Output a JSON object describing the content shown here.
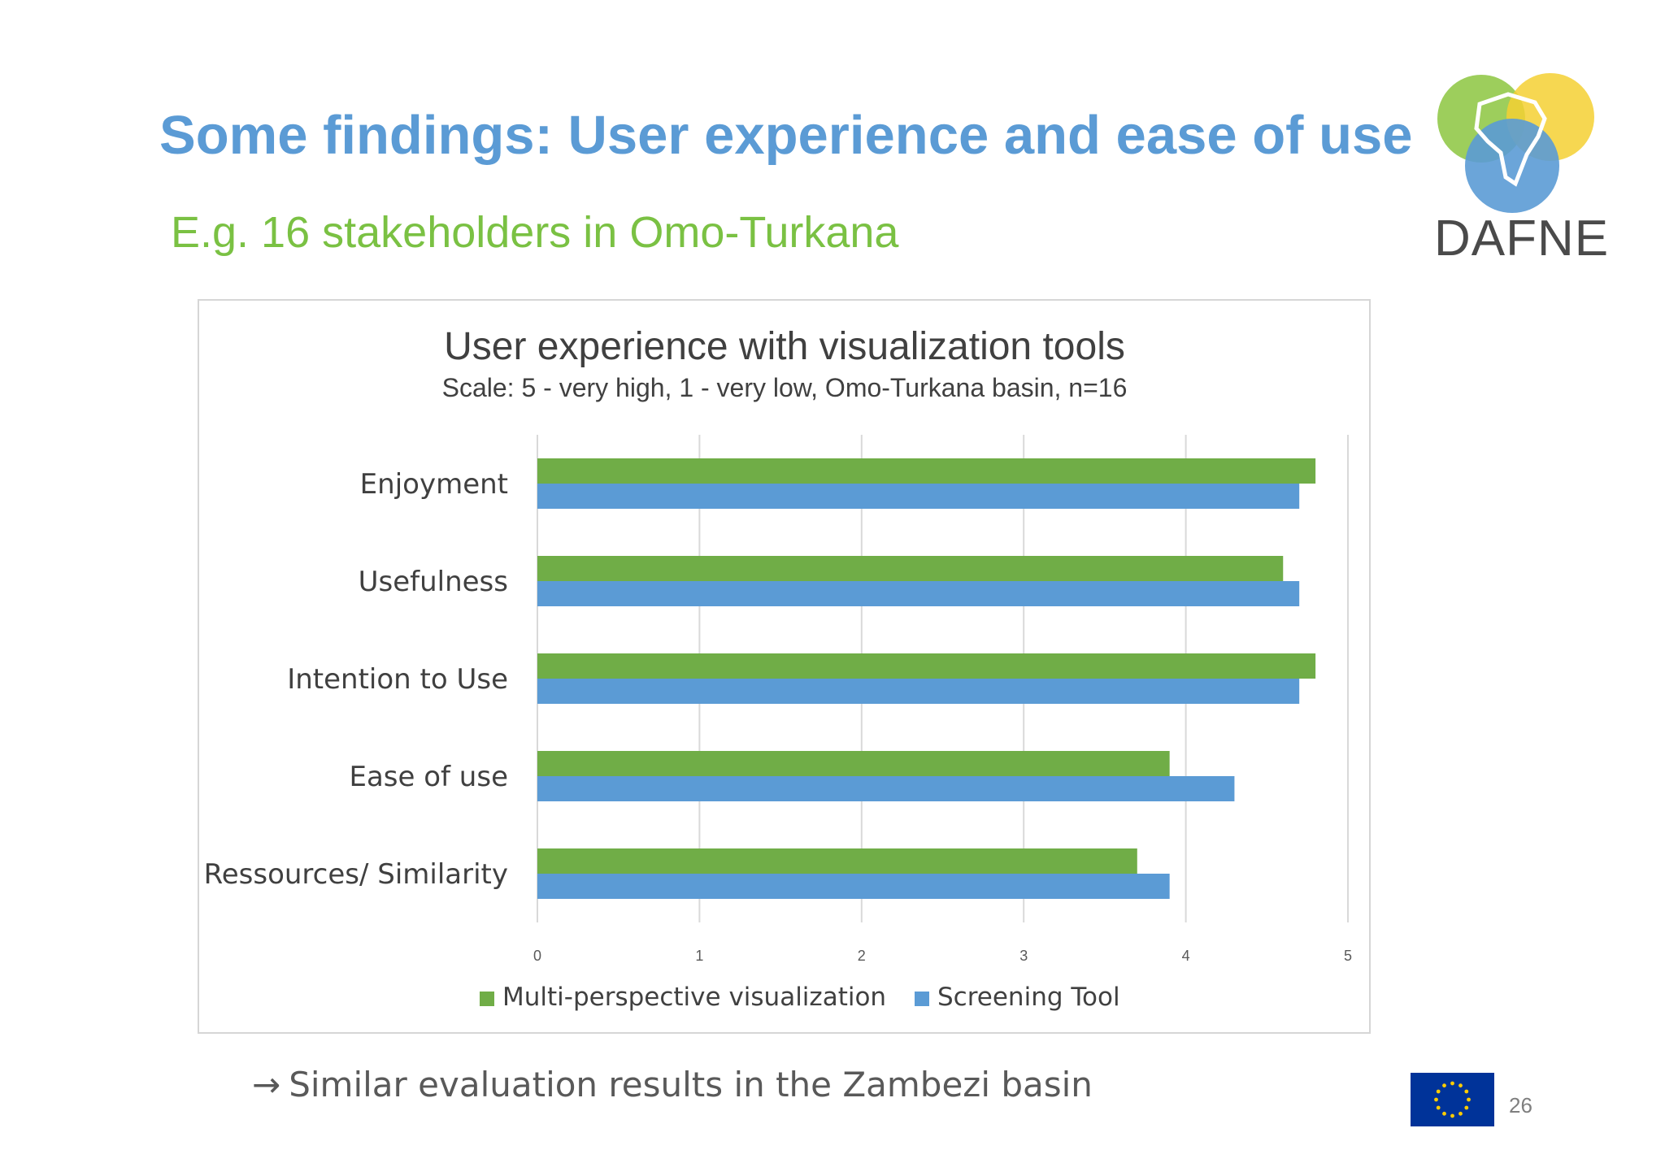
{
  "slide": {
    "title": "Some findings: User experience and ease of use",
    "subtitle": "E.g. 16 stakeholders in Omo-Turkana",
    "logo_text": "DAFNE",
    "footnote_arrow": "→",
    "footnote": "Similar evaluation results in the Zambezi basin",
    "page_number": "26"
  },
  "colors": {
    "title": "#5b9bd5",
    "subtitle": "#7ac143",
    "series_green": "#70ad47",
    "series_blue": "#5b9bd5",
    "eu_blue": "#003399",
    "eu_star": "#ffcc00"
  },
  "chart_data": {
    "type": "bar",
    "orientation": "horizontal",
    "title": "User experience with visualization tools",
    "subtitle": "Scale: 5 - very high, 1 - very low, Omo-Turkana basin, n=16",
    "categories": [
      "Enjoyment",
      "Usefulness",
      "Intention to Use",
      "Ease of use",
      "Ressources/ Similarity"
    ],
    "series": [
      {
        "name": "Multi-perspective visualization",
        "color": "#70ad47",
        "values": [
          4.8,
          4.6,
          4.8,
          3.9,
          3.7
        ]
      },
      {
        "name": "Screening Tool",
        "color": "#5b9bd5",
        "values": [
          4.7,
          4.7,
          4.7,
          4.3,
          3.9
        ]
      }
    ],
    "xlim": [
      0,
      5
    ],
    "xticks": [
      "0",
      "1",
      "2",
      "3",
      "4",
      "5"
    ],
    "grid": true,
    "legend": "bottom"
  }
}
